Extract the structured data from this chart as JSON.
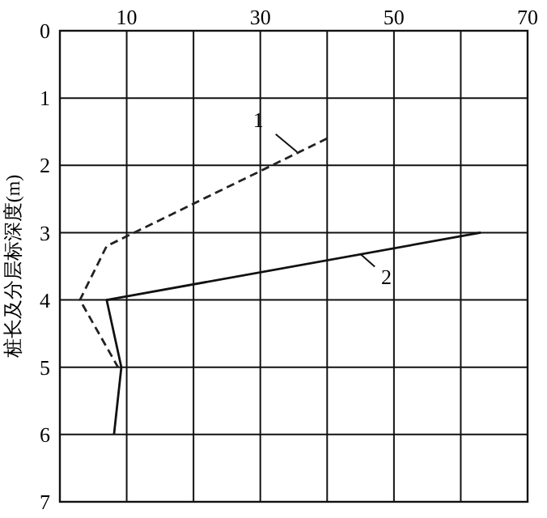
{
  "chart_data": {
    "type": "line",
    "ylabel": "桩长及分层标深度(m)",
    "xlim": [
      0,
      70
    ],
    "xticks": [
      {
        "value": 0,
        "label": null
      },
      10,
      {
        "value": 20,
        "label": null
      },
      30,
      {
        "value": 40,
        "label": null
      },
      50,
      {
        "value": 60,
        "label": null
      },
      70
    ],
    "ylim": [
      7,
      0
    ],
    "yticks": [
      0,
      1,
      2,
      3,
      4,
      5,
      6,
      7
    ],
    "grid": true,
    "marker": "none",
    "series": [
      {
        "color": "#222222",
        "line_style": "dashed",
        "x": [
          40,
          7,
          3,
          8.7
        ],
        "values": [
          1.6,
          3.2,
          4,
          5
        ]
      },
      {
        "color": "#111111",
        "line_style": "solid",
        "x": [
          63,
          7,
          9.2,
          8.1
        ],
        "values": [
          3,
          4,
          5,
          6
        ]
      }
    ],
    "annotations": [
      {
        "text": "1",
        "x": 35.5,
        "y": 1.8
      },
      {
        "text": "2",
        "x": 45,
        "y": 3.32
      }
    ]
  }
}
